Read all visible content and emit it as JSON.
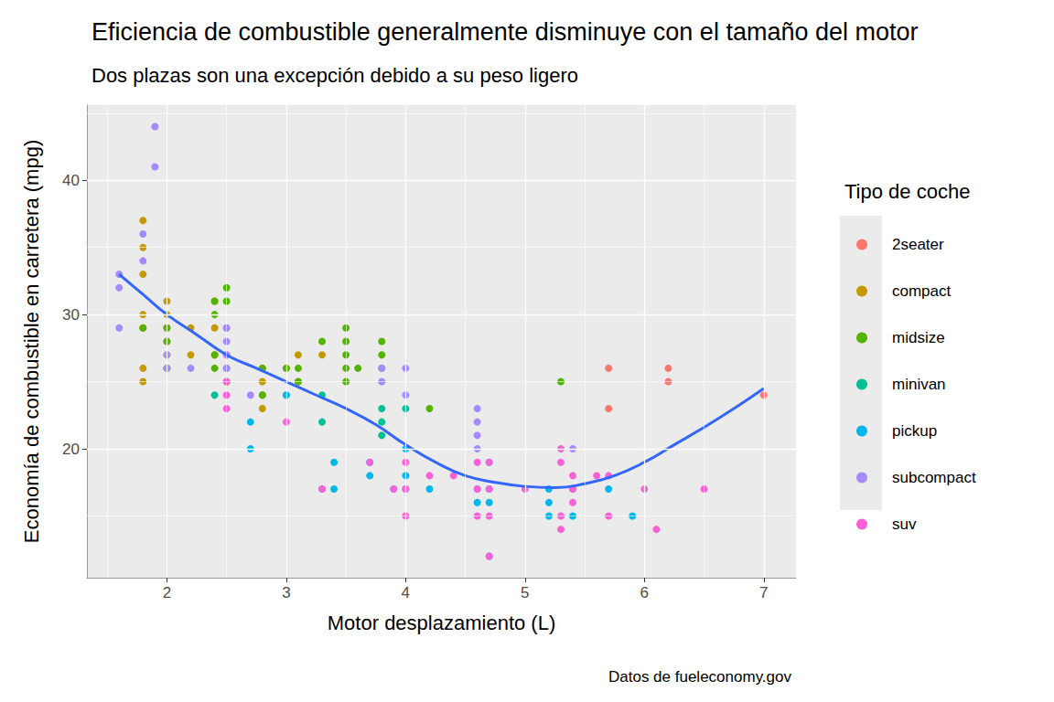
{
  "chart_data": {
    "type": "scatter",
    "title": "Eficiencia de combustible generalmente disminuye con el tamaño del motor",
    "subtitle": "Dos plazas son una excepción debido a su peso ligero",
    "caption": "Datos de fueleconomy.gov",
    "x_label": "Motor desplazamiento (L)",
    "y_label": "Economía de combustible en carretera (mpg)",
    "legend_title": "Tipo de coche",
    "legend": "right",
    "grid": true,
    "marker": "circle",
    "xlim": [
      1.33,
      7.27
    ],
    "ylim": [
      10.4,
      45.6
    ],
    "xticks": [
      2,
      3,
      4,
      5,
      6,
      7
    ],
    "yticks": [
      20,
      30,
      40
    ],
    "series": [
      {
        "name": "2seater",
        "color": "#F8766D",
        "x": [
          5.7,
          5.7,
          6.2,
          6.2,
          7.0
        ],
        "y": [
          26,
          23,
          26,
          25,
          24
        ]
      },
      {
        "name": "compact",
        "color": "#C49A00",
        "x": [
          1.8,
          1.8,
          1.8,
          1.8,
          1.8,
          1.8,
          1.8,
          2.0,
          2.0,
          2.0,
          2.0,
          2.0,
          2.0,
          2.2,
          2.2,
          2.4,
          2.4,
          2.4,
          2.5,
          2.5,
          2.5,
          2.8,
          2.8,
          2.8,
          2.8,
          3.0,
          3.1,
          3.1,
          3.3
        ],
        "y": [
          25,
          26,
          29,
          30,
          33,
          35,
          37,
          26,
          27,
          28,
          29,
          30,
          31,
          27,
          29,
          27,
          29,
          31,
          25,
          27,
          29,
          23,
          24,
          25,
          26,
          26,
          25,
          27,
          27
        ]
      },
      {
        "name": "midsize",
        "color": "#53B400",
        "x": [
          1.8,
          2.0,
          2.0,
          2.0,
          2.4,
          2.4,
          2.4,
          2.4,
          2.5,
          2.5,
          2.5,
          2.5,
          2.8,
          2.8,
          3.0,
          3.1,
          3.1,
          3.3,
          3.5,
          3.5,
          3.5,
          3.5,
          3.5,
          3.6,
          3.8,
          3.8,
          3.8,
          4.2,
          5.3
        ],
        "y": [
          29,
          26,
          28,
          29,
          26,
          27,
          30,
          31,
          25,
          26,
          31,
          32,
          24,
          26,
          26,
          25,
          26,
          28,
          25,
          26,
          27,
          28,
          29,
          26,
          26,
          27,
          28,
          23,
          25
        ]
      },
      {
        "name": "minivan",
        "color": "#00C094",
        "x": [
          2.4,
          3.0,
          3.3,
          3.3,
          3.3,
          3.8,
          3.8,
          3.8,
          4.0
        ],
        "y": [
          24,
          24,
          22,
          24,
          17,
          21,
          22,
          23,
          23
        ]
      },
      {
        "name": "pickup",
        "color": "#00B6EB",
        "x": [
          2.7,
          2.7,
          3.0,
          3.4,
          3.4,
          3.7,
          3.7,
          3.9,
          4.0,
          4.0,
          4.0,
          4.2,
          4.6,
          4.6,
          4.7,
          4.7,
          4.7,
          4.7,
          5.2,
          5.2,
          5.2,
          5.4,
          5.4,
          5.7,
          5.9
        ],
        "y": [
          20,
          22,
          24,
          17,
          19,
          18,
          19,
          17,
          17,
          18,
          20,
          17,
          16,
          17,
          12,
          16,
          17,
          19,
          15,
          16,
          17,
          15,
          17,
          17,
          15
        ]
      },
      {
        "name": "subcompact",
        "color": "#A58AFF",
        "x": [
          1.6,
          1.6,
          1.6,
          1.8,
          1.8,
          1.9,
          1.9,
          2.0,
          2.0,
          2.2,
          2.5,
          2.5,
          2.5,
          2.5,
          2.7,
          3.8,
          3.8,
          4.0,
          4.0,
          4.6,
          4.6,
          4.6,
          4.6,
          5.4
        ],
        "y": [
          29,
          32,
          33,
          34,
          36,
          41,
          44,
          26,
          27,
          26,
          26,
          27,
          28,
          29,
          24,
          25,
          26,
          24,
          26,
          20,
          21,
          22,
          23,
          20
        ]
      },
      {
        "name": "suv",
        "color": "#FB61D7",
        "x": [
          2.5,
          2.5,
          2.5,
          3.0,
          3.3,
          3.7,
          3.9,
          4.0,
          4.0,
          4.0,
          4.2,
          4.4,
          4.6,
          4.6,
          4.6,
          4.7,
          4.7,
          4.7,
          4.7,
          5.0,
          5.3,
          5.3,
          5.3,
          5.3,
          5.4,
          5.4,
          5.4,
          5.6,
          5.7,
          5.7,
          6.0,
          6.1,
          6.5
        ],
        "y": [
          23,
          24,
          25,
          22,
          17,
          19,
          17,
          15,
          17,
          19,
          18,
          18,
          15,
          17,
          19,
          12,
          15,
          17,
          19,
          17,
          14,
          15,
          19,
          20,
          16,
          17,
          18,
          18,
          15,
          18,
          17,
          14,
          17
        ]
      }
    ],
    "trend": {
      "type": "line",
      "color": "#3366FF",
      "x": [
        1.6,
        1.8,
        2.0,
        2.25,
        2.5,
        2.75,
        3.0,
        3.25,
        3.5,
        3.75,
        4.0,
        4.25,
        4.5,
        4.75,
        5.0,
        5.25,
        5.5,
        5.75,
        6.0,
        6.25,
        6.5,
        6.75,
        7.0
      ],
      "y": [
        33,
        31.5,
        30,
        28.5,
        27,
        26,
        25,
        24,
        23,
        21.8,
        20.3,
        19,
        18,
        17.5,
        17.2,
        17.1,
        17.4,
        18,
        19,
        20.3,
        21.6,
        23,
        24.5
      ]
    }
  }
}
